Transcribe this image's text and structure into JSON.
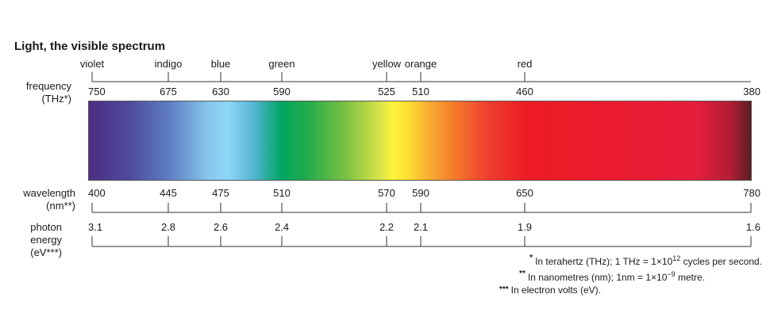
{
  "title": "Light, the visible spectrum",
  "colors": {
    "names": [
      {
        "label": "violet",
        "at": 750
      },
      {
        "label": "indigo",
        "at": 675
      },
      {
        "label": "blue",
        "at": 630
      },
      {
        "label": "green",
        "at": 590
      },
      {
        "label": "yellow",
        "at": 525
      },
      {
        "label": "orange",
        "at": 510
      },
      {
        "label": "red",
        "at": 460
      }
    ]
  },
  "frequency": {
    "label_line1": "frequency",
    "label_line2": "(THz*)",
    "ticks": [
      "750",
      "675",
      "630",
      "590",
      "525",
      "510",
      "460",
      "380"
    ]
  },
  "wavelength": {
    "label_line1": "wavelength",
    "label_line2": "(nm**)",
    "ticks": [
      "400",
      "445",
      "475",
      "510",
      "570",
      "590",
      "650",
      "780"
    ]
  },
  "photon_energy": {
    "label_line1": "photon",
    "label_line2": "energy",
    "label_line3": "(eV***)",
    "ticks": [
      "3.1",
      "2.8",
      "2.6",
      "2.4",
      "2.2",
      "2.1",
      "1.9",
      "1.6"
    ]
  },
  "footnotes": {
    "fn1_marker": "*",
    "fn1_text_a": "In terahertz (THz); 1 THz = 1×10",
    "fn1_sup": "12",
    "fn1_text_b": " cycles per second.",
    "fn2_marker": "**",
    "fn2_text_a": "In nanometres (nm); 1nm = 1×10",
    "fn2_sup": "−9",
    "fn2_text_b": " metre.",
    "fn3_marker": "***",
    "fn3_text": "In electron volts (eV)."
  }
}
